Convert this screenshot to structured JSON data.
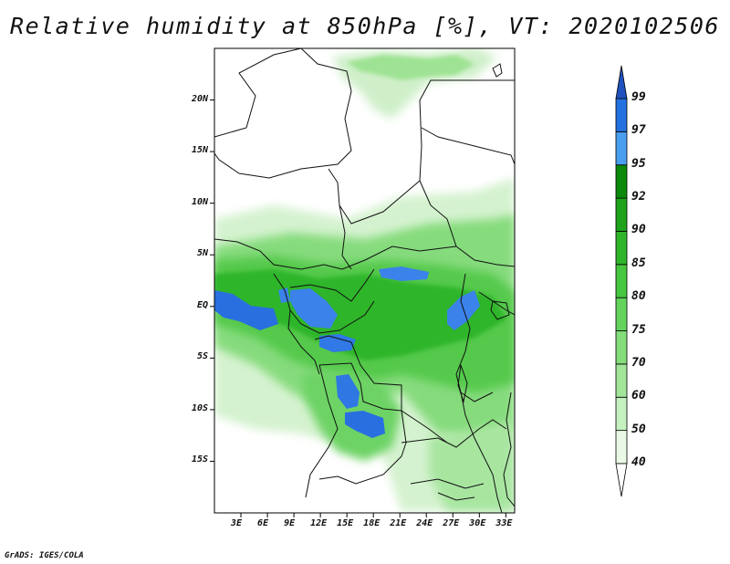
{
  "title": "Relative humidity at 850hPa [%], VT: 2020102506",
  "credit": "GrADS: IGES/COLA",
  "map": {
    "lon_range": [
      0,
      34
    ],
    "lat_range": [
      -20,
      25
    ],
    "y_ticks": [
      {
        "value": 20,
        "label": "20N"
      },
      {
        "value": 15,
        "label": "15N"
      },
      {
        "value": 10,
        "label": "10N"
      },
      {
        "value": 5,
        "label": "5N"
      },
      {
        "value": 0,
        "label": "EQ"
      },
      {
        "value": -5,
        "label": "5S"
      },
      {
        "value": -10,
        "label": "10S"
      },
      {
        "value": -15,
        "label": "15S"
      }
    ],
    "x_ticks": [
      {
        "value": 3,
        "label": "3E"
      },
      {
        "value": 6,
        "label": "6E"
      },
      {
        "value": 9,
        "label": "9E"
      },
      {
        "value": 12,
        "label": "12E"
      },
      {
        "value": 15,
        "label": "15E"
      },
      {
        "value": 18,
        "label": "18E"
      },
      {
        "value": 21,
        "label": "21E"
      },
      {
        "value": 24,
        "label": "24E"
      },
      {
        "value": 27,
        "label": "27E"
      },
      {
        "value": 30,
        "label": "30E"
      },
      {
        "value": 33,
        "label": "33E"
      }
    ]
  },
  "colorbar": {
    "levels": [
      40,
      50,
      60,
      70,
      75,
      80,
      85,
      90,
      92,
      95,
      97,
      99
    ],
    "labels": [
      "40",
      "50",
      "60",
      "70",
      "75",
      "80",
      "85",
      "90",
      "92",
      "95",
      "97",
      "99"
    ],
    "colors": [
      "#eaf9e6",
      "#c5f0bf",
      "#a2e69a",
      "#82dd7a",
      "#63d35c",
      "#47c63f",
      "#2eb52a",
      "#1ea31a",
      "#0d8a0b",
      "#4a9ef0",
      "#2371e0",
      "#1a4fc4"
    ],
    "below_color": "#ffffff",
    "above_color": "#1f52bd"
  }
}
